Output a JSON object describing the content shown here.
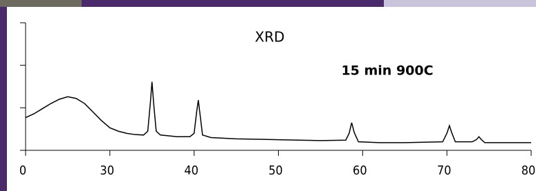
{
  "chart_data": {
    "type": "line",
    "title": "XRD",
    "annotation": "15 min 900C",
    "x": [
      20,
      21,
      22,
      23,
      24,
      25,
      26,
      27,
      28,
      29,
      30,
      31,
      32,
      33,
      34,
      34.5,
      34.8,
      35,
      35.2,
      35.5,
      36,
      38,
      39.5,
      40,
      40.3,
      40.5,
      40.7,
      41,
      42,
      45,
      50,
      55,
      58,
      58.4,
      58.7,
      59,
      59.5,
      62,
      65,
      69.5,
      70,
      70.3,
      70.6,
      71,
      73,
      73.5,
      73.8,
      74.1,
      74.5,
      77,
      80
    ],
    "series": [
      {
        "name": "15 min 900C",
        "color": "#000000",
        "values": [
          0.77,
          0.86,
          0.98,
          1.1,
          1.2,
          1.26,
          1.22,
          1.1,
          0.9,
          0.7,
          0.53,
          0.45,
          0.4,
          0.37,
          0.36,
          0.45,
          1.1,
          1.61,
          1.1,
          0.45,
          0.36,
          0.32,
          0.32,
          0.4,
          0.9,
          1.18,
          0.85,
          0.36,
          0.3,
          0.27,
          0.25,
          0.23,
          0.24,
          0.4,
          0.65,
          0.42,
          0.2,
          0.18,
          0.18,
          0.2,
          0.4,
          0.58,
          0.4,
          0.2,
          0.2,
          0.25,
          0.32,
          0.25,
          0.18,
          0.18,
          0.18
        ]
      }
    ],
    "xlim": [
      20,
      80
    ],
    "xticks": [
      {
        "value": 20,
        "label": "0"
      },
      30,
      40,
      50,
      60,
      70,
      80
    ],
    "ylim": [
      0,
      3
    ],
    "yticks": [
      0,
      1,
      2,
      3
    ]
  }
}
